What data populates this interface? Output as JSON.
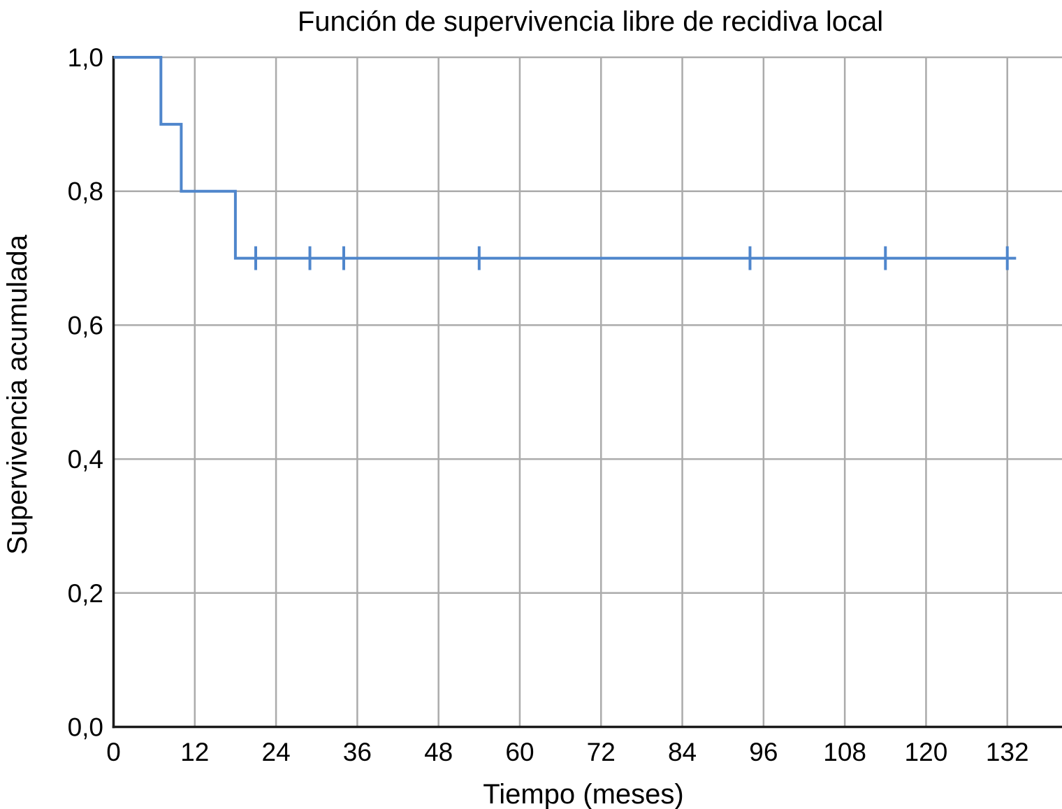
{
  "chart_data": {
    "type": "line",
    "subtype": "kaplan-meier-step-function",
    "title": "Función de supervivencia libre de recidiva local",
    "xlabel": "Tiempo (meses)",
    "ylabel": "Supervivencia acumulada",
    "xlim": [
      0,
      140
    ],
    "ylim": [
      0.0,
      1.0
    ],
    "grid": true,
    "decimal_separator": ",",
    "x_ticks": [
      {
        "value": 0,
        "label": "0"
      },
      {
        "value": 12,
        "label": "12"
      },
      {
        "value": 24,
        "label": "24"
      },
      {
        "value": 36,
        "label": "36"
      },
      {
        "value": 48,
        "label": "48"
      },
      {
        "value": 60,
        "label": "60"
      },
      {
        "value": 72,
        "label": "72"
      },
      {
        "value": 84,
        "label": "84"
      },
      {
        "value": 96,
        "label": "96"
      },
      {
        "value": 108,
        "label": "108"
      },
      {
        "value": 120,
        "label": "120"
      },
      {
        "value": 132,
        "label": "132"
      }
    ],
    "y_ticks": [
      {
        "value": 0.0,
        "label": "0,0"
      },
      {
        "value": 0.2,
        "label": "0,2"
      },
      {
        "value": 0.4,
        "label": "0,4"
      },
      {
        "value": 0.6,
        "label": "0,6"
      },
      {
        "value": 0.8,
        "label": "0,8"
      },
      {
        "value": 1.0,
        "label": "1,0"
      }
    ],
    "series": [
      {
        "name": "Supervivencia libre de recidiva local",
        "step_points": [
          [
            0,
            1.0
          ],
          [
            7,
            1.0
          ],
          [
            7,
            0.9
          ],
          [
            10,
            0.9
          ],
          [
            10,
            0.8
          ],
          [
            18,
            0.8
          ],
          [
            18,
            0.7
          ],
          [
            133.3,
            0.7
          ]
        ],
        "events": [
          {
            "time": 7,
            "survival_after": 0.9
          },
          {
            "time": 10,
            "survival_after": 0.8
          },
          {
            "time": 18,
            "survival_after": 0.7
          }
        ],
        "censored_marks": [
          {
            "time": 21,
            "survival": 0.7
          },
          {
            "time": 29,
            "survival": 0.7
          },
          {
            "time": 34,
            "survival": 0.7
          },
          {
            "time": 54,
            "survival": 0.7
          },
          {
            "time": 94,
            "survival": 0.7
          },
          {
            "time": 114,
            "survival": 0.7
          },
          {
            "time": 132,
            "survival": 0.7
          }
        ]
      }
    ],
    "colors": {
      "curve": "#4F86CC",
      "grid": "#ABABAB",
      "axis": "#1A1A1A",
      "background": "#FFFFFF",
      "text": "#000000"
    },
    "legend": null
  }
}
